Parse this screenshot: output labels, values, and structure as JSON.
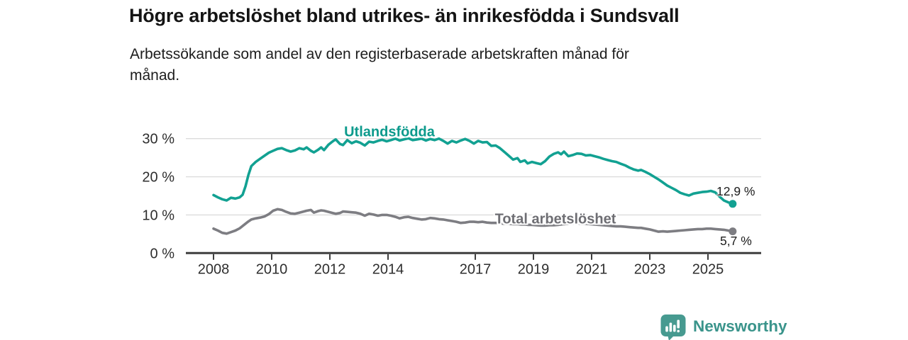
{
  "header": {
    "title": "Högre arbetslöshet bland utrikes- än inrikesfödda i Sundsvall",
    "subtitle": "Arbetssökande som andel av den registerbaserade arbetskraften månad för\nmånad."
  },
  "footer": {
    "brand": "Newsworthy",
    "brand_color": "#3a948b",
    "icon_color": "#479a90",
    "icon": "newsworthy-speech-bubble-bar-chart-icon"
  },
  "chart_data": {
    "type": "line",
    "title": "Högre arbetslöshet bland utrikes- än inrikesfödda i Sundsvall",
    "subtitle": "Arbetssökande som andel av den registerbaserade arbetskraften månad för månad.",
    "grid": true,
    "xlim": [
      2007.1,
      2026.8
    ],
    "ylim": [
      0,
      33
    ],
    "x_axis": {
      "ticks": [
        2008,
        2010,
        2012,
        2014,
        2017,
        2019,
        2021,
        2023,
        2025
      ],
      "labels": [
        "2008",
        "2010",
        "2012",
        "2014",
        "2017",
        "2019",
        "2021",
        "2023",
        "2025"
      ]
    },
    "y_axis": {
      "ticks": [
        0,
        10,
        20,
        30
      ],
      "labels": [
        "0 %",
        "10 %",
        "20 %",
        "30 %"
      ],
      "unit": "%"
    },
    "x": [
      2008.0,
      2008.15,
      2008.3,
      2008.45,
      2008.6,
      2008.75,
      2008.9,
      2009.0,
      2009.1,
      2009.2,
      2009.3,
      2009.45,
      2009.6,
      2009.75,
      2009.9,
      2010.05,
      2010.2,
      2010.35,
      2010.5,
      2010.65,
      2010.8,
      2010.95,
      2011.1,
      2011.2,
      2011.35,
      2011.45,
      2011.6,
      2011.7,
      2011.8,
      2011.95,
      2012.1,
      2012.2,
      2012.35,
      2012.45,
      2012.6,
      2012.75,
      2012.9,
      2013.05,
      2013.2,
      2013.35,
      2013.5,
      2013.65,
      2013.8,
      2013.95,
      2014.1,
      2014.25,
      2014.4,
      2014.55,
      2014.7,
      2014.85,
      2015.0,
      2015.15,
      2015.3,
      2015.45,
      2015.6,
      2015.75,
      2015.9,
      2016.05,
      2016.2,
      2016.35,
      2016.5,
      2016.65,
      2016.8,
      2016.95,
      2017.1,
      2017.25,
      2017.4,
      2017.55,
      2017.7,
      2017.85,
      2018.0,
      2018.15,
      2018.3,
      2018.45,
      2018.55,
      2018.7,
      2018.8,
      2018.95,
      2019.1,
      2019.25,
      2019.4,
      2019.55,
      2019.7,
      2019.85,
      2019.95,
      2020.05,
      2020.2,
      2020.35,
      2020.5,
      2020.65,
      2020.8,
      2020.95,
      2021.1,
      2021.25,
      2021.4,
      2021.55,
      2021.7,
      2021.85,
      2022.0,
      2022.15,
      2022.3,
      2022.45,
      2022.6,
      2022.7,
      2022.85,
      2023.0,
      2023.15,
      2023.3,
      2023.45,
      2023.6,
      2023.75,
      2023.9,
      2024.05,
      2024.2,
      2024.35,
      2024.5,
      2024.65,
      2024.8,
      2024.95,
      2025.1,
      2025.25,
      2025.4,
      2025.55,
      2025.7,
      2025.85
    ],
    "series": [
      {
        "name": "Utlandsfödda",
        "color": "#12a192",
        "label_color": "#0c9a8c",
        "end_label": "12,9 %",
        "end_value": 12.9,
        "values": [
          15.2,
          14.6,
          14.1,
          13.8,
          14.5,
          14.3,
          14.6,
          15.3,
          17.5,
          20.5,
          22.8,
          23.9,
          24.7,
          25.5,
          26.3,
          26.8,
          27.3,
          27.5,
          27.0,
          26.6,
          26.9,
          27.5,
          27.2,
          27.7,
          26.8,
          26.4,
          27.1,
          27.7,
          27.0,
          28.4,
          29.3,
          29.8,
          28.6,
          28.3,
          29.6,
          28.8,
          29.3,
          28.9,
          28.2,
          29.2,
          29.0,
          29.4,
          29.7,
          29.3,
          29.6,
          30.0,
          29.5,
          29.8,
          30.1,
          29.6,
          29.8,
          30.0,
          29.5,
          29.9,
          29.6,
          30.0,
          29.4,
          28.7,
          29.4,
          29.0,
          29.5,
          29.9,
          29.4,
          28.7,
          29.4,
          29.0,
          29.1,
          28.1,
          28.2,
          27.5,
          26.5,
          25.5,
          24.5,
          24.9,
          23.9,
          24.3,
          23.5,
          23.9,
          23.6,
          23.3,
          24.1,
          25.3,
          26.0,
          26.4,
          25.9,
          26.6,
          25.4,
          25.7,
          26.1,
          26.0,
          25.6,
          25.7,
          25.4,
          25.1,
          24.7,
          24.4,
          24.1,
          23.9,
          23.4,
          23.0,
          22.4,
          21.9,
          21.6,
          21.8,
          21.3,
          20.7,
          20.0,
          19.3,
          18.5,
          17.7,
          17.1,
          16.5,
          15.8,
          15.4,
          15.1,
          15.6,
          15.8,
          16.0,
          16.1,
          16.3,
          15.9,
          14.8,
          13.8,
          13.3,
          12.9
        ]
      },
      {
        "name": "Total arbetslöshet",
        "color": "#7d7d82",
        "label_color": "#6e6e73",
        "end_label": "5,7 %",
        "end_value": 5.7,
        "values": [
          6.4,
          5.9,
          5.3,
          5.1,
          5.5,
          5.9,
          6.5,
          7.1,
          7.7,
          8.3,
          8.8,
          9.1,
          9.3,
          9.6,
          10.2,
          11.1,
          11.5,
          11.3,
          10.8,
          10.4,
          10.3,
          10.6,
          10.9,
          11.1,
          11.3,
          10.6,
          11.0,
          11.2,
          11.1,
          10.8,
          10.5,
          10.3,
          10.5,
          10.9,
          10.8,
          10.7,
          10.6,
          10.3,
          9.8,
          10.3,
          10.1,
          9.8,
          10.0,
          10.0,
          9.8,
          9.5,
          9.1,
          9.4,
          9.5,
          9.2,
          9.0,
          8.8,
          8.9,
          9.2,
          9.1,
          8.9,
          8.8,
          8.6,
          8.4,
          8.2,
          7.9,
          8.0,
          8.2,
          8.2,
          8.1,
          8.2,
          8.0,
          7.9,
          7.9,
          7.8,
          7.7,
          7.7,
          7.6,
          7.6,
          7.5,
          7.5,
          7.4,
          7.4,
          7.3,
          7.2,
          7.2,
          7.3,
          7.3,
          7.4,
          7.5,
          7.6,
          7.7,
          7.8,
          7.8,
          7.7,
          7.7,
          7.6,
          7.5,
          7.4,
          7.3,
          7.2,
          7.1,
          7.0,
          7.0,
          6.9,
          6.8,
          6.7,
          6.6,
          6.6,
          6.4,
          6.2,
          5.9,
          5.6,
          5.7,
          5.6,
          5.7,
          5.8,
          5.9,
          6.0,
          6.1,
          6.2,
          6.3,
          6.3,
          6.4,
          6.4,
          6.3,
          6.2,
          6.1,
          5.9,
          5.7
        ]
      }
    ],
    "legend_position": "inline-labels"
  }
}
